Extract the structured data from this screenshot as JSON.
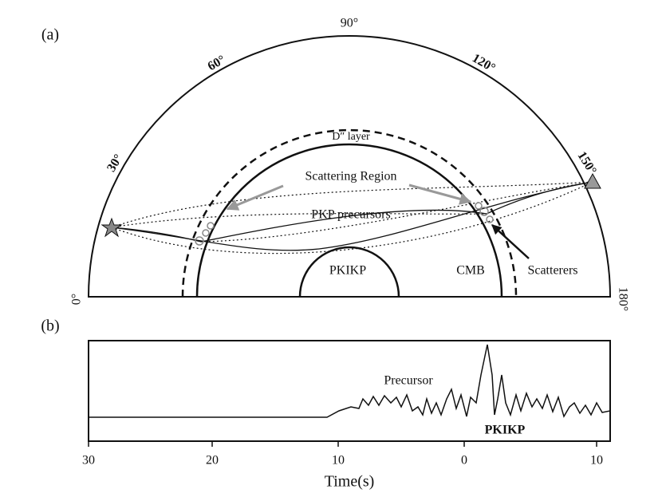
{
  "panel_a": {
    "label": "(a)",
    "angles": [
      "0°",
      "30°",
      "60°",
      "90°",
      "120°",
      "150°",
      "180°"
    ],
    "layer_label": "D″ layer",
    "scattering_label": "Scattering Region",
    "precursor_label": "PKP precursors",
    "core_label": "PKIKP",
    "cmb_label": "CMB",
    "scatterers_label": "Scatterers"
  },
  "panel_b": {
    "label": "(b)",
    "precursor_label": "Precursor",
    "phase_label": "PKIKP",
    "x_ticks": [
      "30",
      "20",
      "10",
      "0",
      "10"
    ],
    "x_axis_label": "Time(s)"
  }
}
